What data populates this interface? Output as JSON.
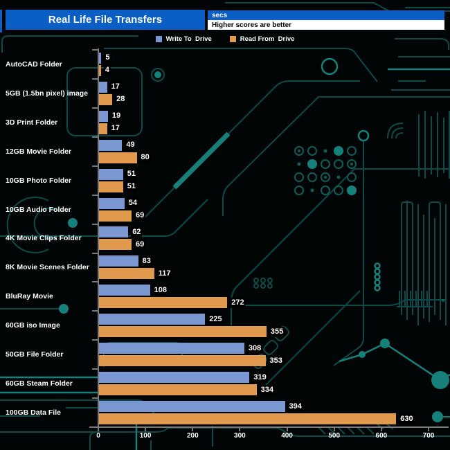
{
  "header": {
    "title": "Real Life File Transfers",
    "unit_label": "secs",
    "subtitle": "Higher scores are better"
  },
  "legend": [
    {
      "key": "write",
      "label": "Write To  Drive",
      "color": "#7b97d1"
    },
    {
      "key": "read",
      "label": "Read From  Drive",
      "color": "#e1994d"
    }
  ],
  "colors": {
    "header_blue": "#0a5ec4",
    "bar_blue": "#7b97d1",
    "bar_orange": "#e1994d",
    "axis_gray": "#7a7a7a",
    "circuit_dim": "#0b4b49",
    "circuit_bright": "#16807b"
  },
  "chart_data": {
    "type": "bar",
    "orientation": "horizontal",
    "title": "Real Life File Transfers",
    "unit": "secs",
    "note": "Higher scores are better",
    "legend_position": "top",
    "grid": false,
    "xlim": [
      0,
      700
    ],
    "xticks": [
      0,
      100,
      200,
      300,
      400,
      500,
      600,
      700
    ],
    "categories": [
      "AutoCAD Folder",
      "5GB (1.5bn pixel) image",
      "3D Print Folder",
      "12GB Movie Folder",
      "10GB Photo Folder",
      "10GB Audio Folder",
      "4K Movie Clips Folder",
      "8K Movie Scenes Folder",
      "BluRay Movie",
      "60GB iso Image",
      "50GB File Folder",
      "60GB Steam Folder",
      "100GB Data File"
    ],
    "series": [
      {
        "name": "Write To Drive",
        "key": "write",
        "color": "#7b97d1",
        "values": [
          5,
          17,
          19,
          49,
          51,
          54,
          62,
          83,
          108,
          225,
          308,
          319,
          394
        ]
      },
      {
        "name": "Read From Drive",
        "key": "read",
        "color": "#e1994d",
        "values": [
          4,
          28,
          17,
          80,
          51,
          69,
          69,
          117,
          272,
          355,
          353,
          334,
          630
        ]
      }
    ]
  }
}
